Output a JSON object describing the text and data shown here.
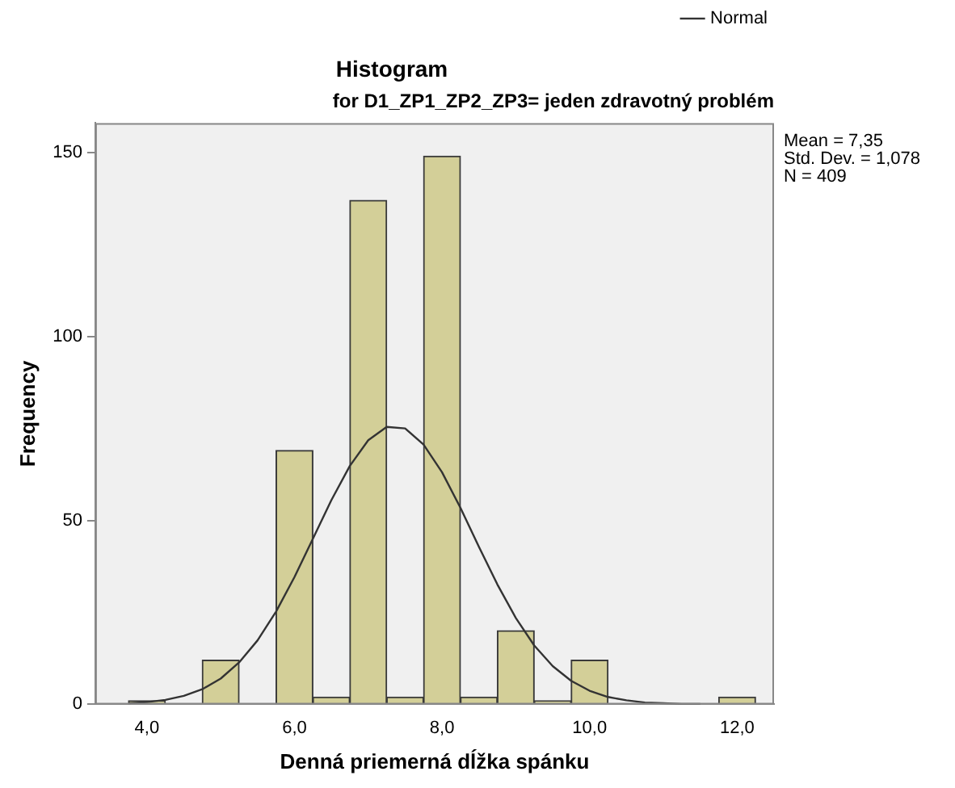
{
  "chart_data": {
    "type": "histogram",
    "title": "Histogram",
    "subtitle": "for D1_ZP1_ZP2_ZP3= jeden zdravotný problém",
    "xlabel": "Denná priemerná dĺžka spánku",
    "ylabel": "Frequency",
    "bins": [
      3.75,
      4.25,
      4.75,
      5.25,
      5.75,
      6.25,
      6.75,
      7.25,
      7.75,
      8.25,
      8.75,
      9.25,
      9.75,
      10.25,
      10.75,
      11.25,
      11.75,
      12.25
    ],
    "values": [
      1,
      0,
      12,
      0,
      69,
      2,
      137,
      2,
      149,
      2,
      20,
      1,
      12,
      0,
      0,
      0,
      2
    ],
    "color": "#d3cf98",
    "series": [
      {
        "name": "Normal",
        "type": "line",
        "color": "#333333",
        "x": [
          3.75,
          4.0,
          4.25,
          4.5,
          4.75,
          5.0,
          5.25,
          5.5,
          5.75,
          6.0,
          6.25,
          6.5,
          6.75,
          7.0,
          7.25,
          7.5,
          7.75,
          8.0,
          8.25,
          8.5,
          8.75,
          9.0,
          9.25,
          9.5,
          9.75,
          10.0,
          10.25,
          10.5,
          10.75,
          11.0,
          11.25,
          11.5
        ],
        "values": [
          0.3,
          0.6,
          1.2,
          2.3,
          4.1,
          7.0,
          11.4,
          17.4,
          25.2,
          34.6,
          45.0,
          55.5,
          64.8,
          71.8,
          75.4,
          75.0,
          70.6,
          63.1,
          53.4,
          42.8,
          32.6,
          23.5,
          16.0,
          10.4,
          6.4,
          3.7,
          2.0,
          1.1,
          0.5,
          0.3,
          0.1,
          0.1
        ]
      }
    ],
    "xlim": [
      3.3,
      12.5
    ],
    "ylim": [
      0,
      158
    ],
    "xticks": [
      {
        "value": 4,
        "label": "4,0"
      },
      {
        "value": 6,
        "label": "6,0"
      },
      {
        "value": 8,
        "label": "8,0"
      },
      {
        "value": 10,
        "label": "10,0"
      },
      {
        "value": 12,
        "label": "12,0"
      }
    ],
    "yticks": [
      0,
      50,
      100,
      150
    ],
    "annotations": [
      "Mean = 7,35",
      "Std. Dev. = 1,078",
      "N = 409"
    ],
    "legend": "top right",
    "grid": false,
    "marker": "none",
    "line_style": "solid"
  }
}
